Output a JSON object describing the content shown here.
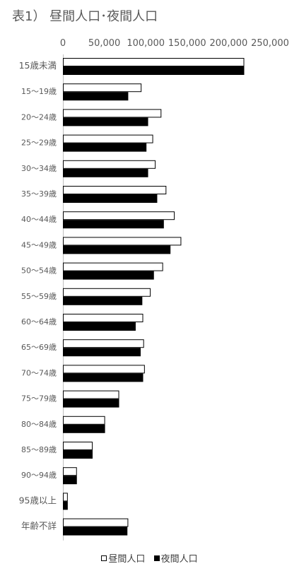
{
  "chart_data": {
    "type": "bar",
    "orientation": "horizontal",
    "title": "表1） 昼間人口･夜間人口",
    "categories": [
      "15歳未満",
      "15～19歳",
      "20～24歳",
      "25～29歳",
      "30～34歳",
      "35～39歳",
      "40～44歳",
      "45～49歳",
      "50～54歳",
      "55～59歳",
      "60～64歳",
      "65～69歳",
      "70～74歳",
      "75～79歳",
      "80～84歳",
      "85～89歳",
      "90～94歳",
      "95歳以上",
      "年齢不詳"
    ],
    "x_ticks": [
      "0",
      "50,000",
      "100,000",
      "150,000",
      "200,000",
      "250,000"
    ],
    "xlim": [
      0,
      250000
    ],
    "grid": false,
    "legend_position": "bottom",
    "series": [
      {
        "name": "昼間人口",
        "color": "#ffffff",
        "edge": "#000000",
        "values": [
          218000,
          94000,
          118000,
          108000,
          111000,
          124000,
          134000,
          142000,
          120000,
          105000,
          96000,
          97000,
          98000,
          67000,
          50000,
          35000,
          16000,
          5000,
          78000
        ]
      },
      {
        "name": "夜間人口",
        "color": "#000000",
        "edge": "#000000",
        "values": [
          218000,
          78000,
          102000,
          100000,
          102000,
          113000,
          121000,
          129000,
          109000,
          95000,
          87000,
          93000,
          96000,
          67000,
          50000,
          35000,
          16000,
          5000,
          77000
        ]
      }
    ]
  }
}
